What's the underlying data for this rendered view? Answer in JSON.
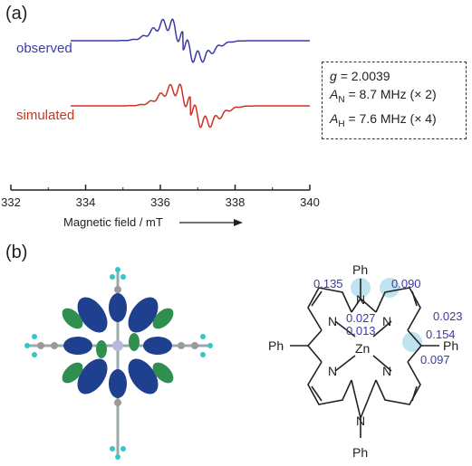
{
  "panel_a": {
    "label": "(a)",
    "parameters": {
      "g_symbol": "g",
      "g_value": "= 2.0039",
      "AN_symbol": "A",
      "AN_sub": "N",
      "AN_value": "= 8.7 MHz (× 2)",
      "AH_symbol": "A",
      "AH_sub": "H",
      "AH_value": "= 7.6 MHz (× 4)"
    }
  },
  "panel_b": {
    "label": "(b)",
    "structure": {
      "ph_top": "Ph",
      "ph_bottom": "Ph",
      "ph_left": "Ph",
      "ph_right": "Ph",
      "zn": "Zn",
      "n_top": "N",
      "n_bottom": "N",
      "n_left": "N",
      "n_right": "N",
      "n_lower_left": "N",
      "n_lower_right": "N",
      "spin_densities": [
        "0.135",
        "0.090",
        "0.023",
        "0.027",
        "0.013",
        "0.154",
        "0.097"
      ]
    },
    "colors": {
      "orbital_blue": "#1f3f8f",
      "orbital_green": "#2f8f4f",
      "highlight": "#bfe3ef"
    }
  },
  "chart_data": {
    "type": "line",
    "xlabel": "Magnetic field / mT",
    "ylabel": "",
    "xlim": [
      332,
      340
    ],
    "xticks": [
      332,
      334,
      336,
      338,
      340
    ],
    "series": [
      {
        "name": "observed",
        "color": "#3b3ba8",
        "center": 336.6,
        "offset": 0
      },
      {
        "name": "simulated",
        "color": "#cc3322",
        "center": 336.8,
        "offset": 1
      }
    ],
    "axis_ranges_note": "",
    "grid": false
  }
}
